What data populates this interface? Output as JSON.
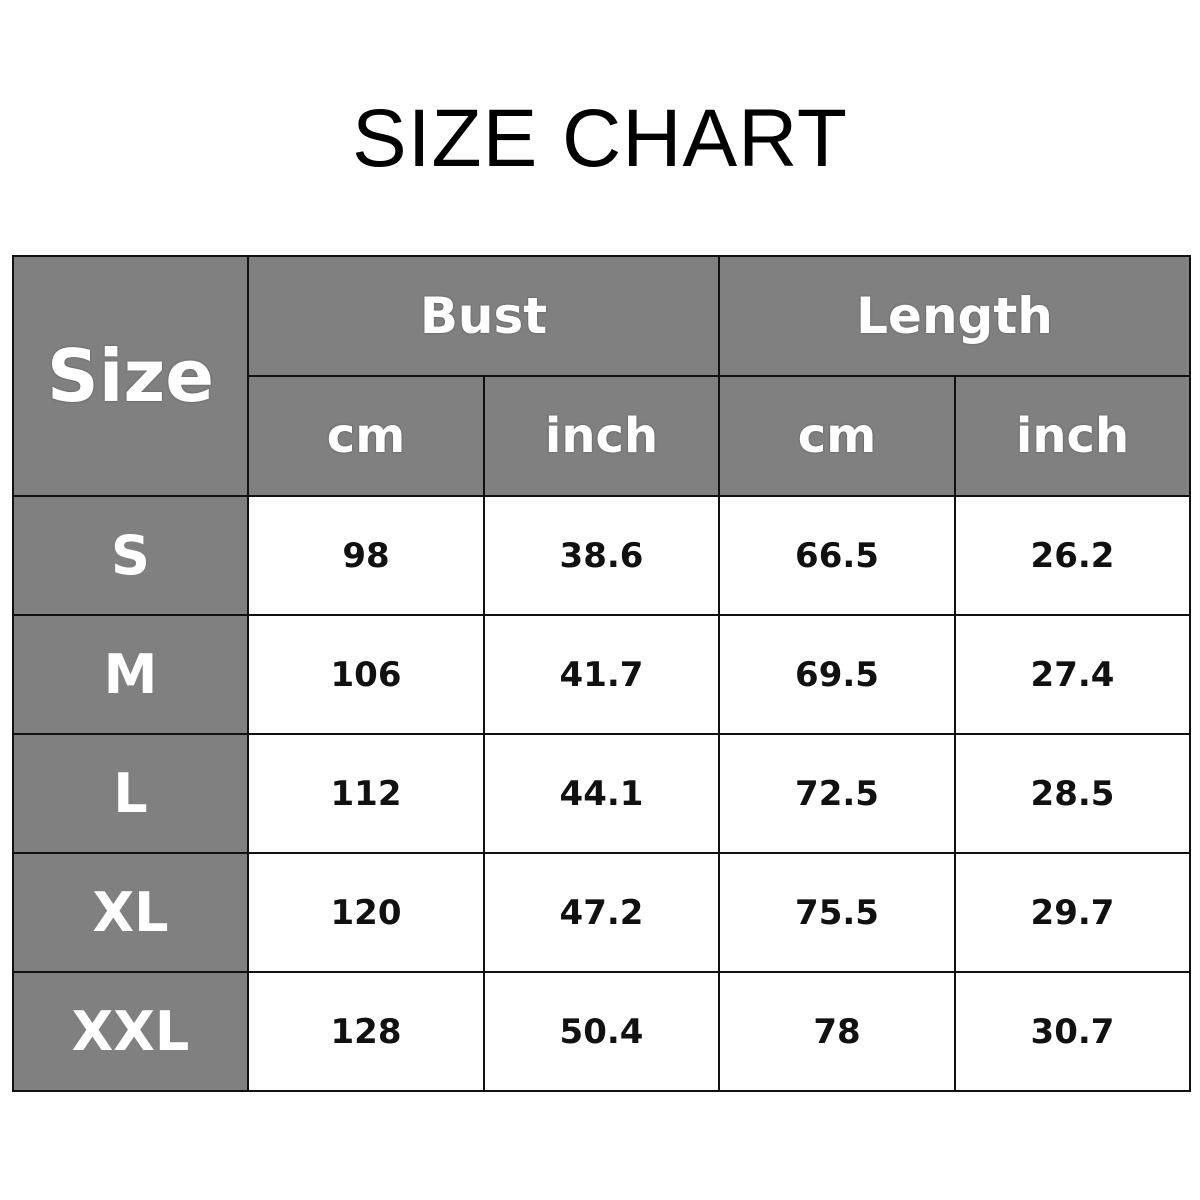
{
  "title": "SIZE CHART",
  "table": {
    "size_header": "Size",
    "groups": [
      "Bust",
      "Length"
    ],
    "units": [
      "cm",
      "inch",
      "cm",
      "inch"
    ],
    "rows": [
      {
        "size": "S",
        "values": [
          "98",
          "38.6",
          "66.5",
          "26.2"
        ]
      },
      {
        "size": "M",
        "values": [
          "106",
          "41.7",
          "69.5",
          "27.4"
        ]
      },
      {
        "size": "L",
        "values": [
          "112",
          "44.1",
          "72.5",
          "28.5"
        ]
      },
      {
        "size": "XL",
        "values": [
          "120",
          "47.2",
          "75.5",
          "29.7"
        ]
      },
      {
        "size": "XXL",
        "values": [
          "128",
          "50.4",
          "78",
          "30.7"
        ]
      }
    ]
  },
  "colors": {
    "header_bg": "#808080",
    "header_text": "#ffffff",
    "cell_bg": "#ffffff",
    "cell_text": "#111111"
  }
}
